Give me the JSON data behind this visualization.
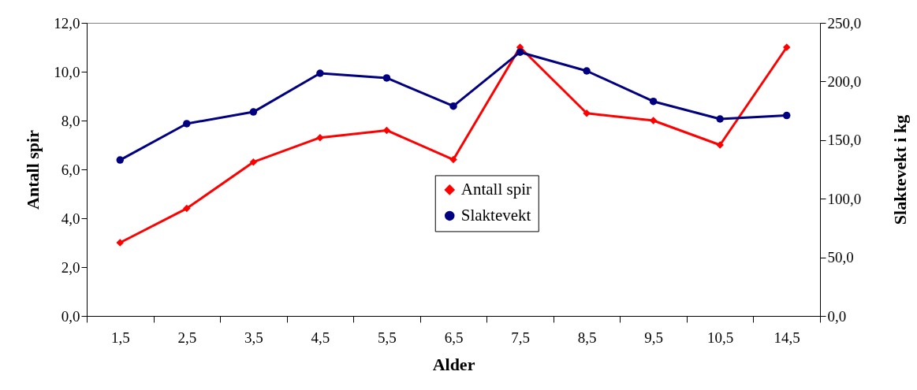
{
  "chart_data": {
    "type": "line",
    "xlabel": "Alder",
    "ylabel": "Antall spir",
    "y2label": "Slaktevekt i kg",
    "categories": [
      "1,5",
      "2,5",
      "3,5",
      "4,5",
      "5,5",
      "6,5",
      "7,5",
      "8,5",
      "9,5",
      "10,5",
      "14,5"
    ],
    "series": [
      {
        "name": "Antall spir",
        "color": "#ff0000",
        "marker": "diamond",
        "values": [
          3.0,
          4.4,
          6.3,
          7.3,
          7.6,
          6.4,
          11.0,
          8.3,
          8.0,
          7.0,
          11.0
        ]
      },
      {
        "name": "Slaktevekt",
        "color": "#000080",
        "marker": "circle",
        "axis": "y2",
        "values": [
          133,
          164,
          174,
          207,
          203,
          179,
          225,
          209,
          183,
          168,
          171
        ]
      }
    ],
    "ylim": [
      0,
      12
    ],
    "yticks": [
      {
        "value": 0,
        "label": "0,0"
      },
      {
        "value": 2,
        "label": "2,0"
      },
      {
        "value": 4,
        "label": "4,0"
      },
      {
        "value": 6,
        "label": "6,0"
      },
      {
        "value": 8,
        "label": "8,0"
      },
      {
        "value": 10,
        "label": "10,0"
      },
      {
        "value": 12,
        "label": "12,0"
      }
    ],
    "y2lim": [
      0,
      250
    ],
    "y2ticks": [
      {
        "value": 0,
        "label": "0,0"
      },
      {
        "value": 50,
        "label": "50,0"
      },
      {
        "value": 100,
        "label": "100,0"
      },
      {
        "value": 150,
        "label": "150,0"
      },
      {
        "value": 200,
        "label": "200,0"
      },
      {
        "value": 250,
        "label": "250,0"
      }
    ],
    "grid": false,
    "legend": "center"
  }
}
